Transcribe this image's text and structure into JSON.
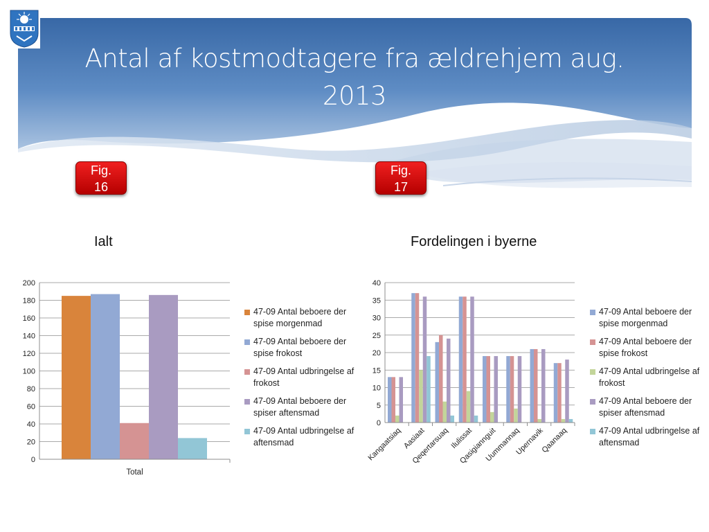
{
  "slide": {
    "title_line1": "Antal af kostmodtagere fra ældrehjem aug.",
    "title_line2": "2013",
    "fig_left": {
      "line1": "Fig.",
      "line2": "16"
    },
    "fig_right": {
      "line1": "Fig.",
      "line2": "17"
    },
    "subtitle_left": "Ialt",
    "subtitle_right": "Fordelingen i byerne"
  },
  "legend": [
    "47-09 Antal beboere der spise morgenmad",
    "47-09 Antal beboere der spise frokost",
    "47-09 Antal udbringelse af frokost",
    "47-09 Antal beboere der spiser aftensmad",
    "47-09 Antal udbringelse af aftensmad"
  ],
  "chart_data": [
    {
      "type": "bar",
      "title": "Ialt",
      "categories": [
        "Total"
      ],
      "ylim": [
        0,
        200
      ],
      "yticks": [
        0,
        20,
        40,
        60,
        80,
        100,
        120,
        140,
        160,
        180,
        200
      ],
      "grid": true,
      "legend_position": "right",
      "series": [
        {
          "name": "47-09 Antal beboere der spise morgenmad",
          "color": "#d9843b",
          "values": [
            185
          ]
        },
        {
          "name": "47-09 Antal beboere der spise frokost",
          "color": "#92a9d4",
          "values": [
            187
          ]
        },
        {
          "name": "47-09 Antal udbringelse af frokost",
          "color": "#d59393",
          "values": [
            41
          ]
        },
        {
          "name": "47-09 Antal beboere der spiser aftensmad",
          "color": "#a99bc1",
          "values": [
            186
          ]
        },
        {
          "name": "47-09 Antal udbringelse af aftensmad",
          "color": "#92c6d6",
          "values": [
            24
          ]
        }
      ]
    },
    {
      "type": "bar",
      "title": "Fordelingen i byerne",
      "categories": [
        "Kangaatsiaq",
        "Aasiaat",
        "Qeqertarsuaq",
        "Ilulissat",
        "Qasigiannguit",
        "Uummannaq",
        "Upernavik",
        "Qaanaaq"
      ],
      "ylim": [
        0,
        40
      ],
      "yticks": [
        0,
        5,
        10,
        15,
        20,
        25,
        30,
        35,
        40
      ],
      "grid": true,
      "legend_position": "right",
      "series": [
        {
          "name": "47-09 Antal beboere der spise morgenmad",
          "color": "#92a9d4",
          "values": [
            13,
            37,
            23,
            36,
            19,
            19,
            21,
            17
          ]
        },
        {
          "name": "47-09 Antal beboere der spise frokost",
          "color": "#d59393",
          "values": [
            13,
            37,
            25,
            36,
            19,
            19,
            21,
            17
          ]
        },
        {
          "name": "47-09 Antal udbringelse af frokost",
          "color": "#c3d59a",
          "values": [
            2,
            15,
            6,
            9,
            3,
            4,
            1,
            1
          ]
        },
        {
          "name": "47-09 Antal beboere der spiser aftensmad",
          "color": "#a99bc1",
          "values": [
            13,
            36,
            24,
            36,
            19,
            19,
            21,
            18
          ]
        },
        {
          "name": "47-09 Antal udbringelse af aftensmad",
          "color": "#92c6d6",
          "values": [
            0,
            19,
            2,
            2,
            0,
            0,
            0,
            1
          ]
        }
      ]
    }
  ]
}
